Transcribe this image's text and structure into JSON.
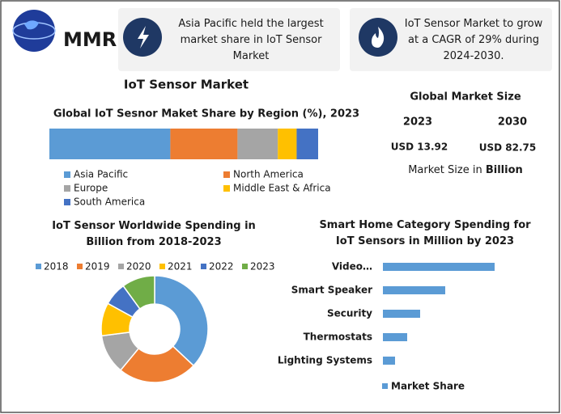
{
  "logo": {
    "text": "MMR"
  },
  "header": {
    "boxes": [
      "Asia Pacific held the largest market share in IoT Sensor Market",
      "IoT Sensor Market to grow at a CAGR of 29% during 2024-2030."
    ]
  },
  "section_title": "IoT Sensor Market",
  "market_size": {
    "title": "Global Market Size",
    "years": [
      "2023",
      "2030"
    ],
    "values": [
      "USD 13.92",
      "USD 82.75"
    ],
    "note": "Market Size in",
    "unit": "Billion"
  },
  "chart_data": [
    {
      "type": "stacked_bar",
      "title": "Global IoT Sesnor Maket Share by Region (%), 2023",
      "series": [
        {
          "name": "Asia Pacific",
          "color": "#5b9bd5",
          "values": [
            45
          ]
        },
        {
          "name": "North America",
          "color": "#ed7d31",
          "values": [
            25
          ]
        },
        {
          "name": "Europe",
          "color": "#a5a5a5",
          "values": [
            15
          ]
        },
        {
          "name": "Middle East & Africa",
          "color": "#ffc000",
          "values": [
            7
          ]
        },
        {
          "name": "South America",
          "color": "#4472c4",
          "values": [
            8
          ]
        }
      ]
    },
    {
      "type": "donut",
      "title": "IoT Sensor Worldwide Spending in Billion from 2018-2023",
      "categories": [
        "2018",
        "2019",
        "2020",
        "2021",
        "2022",
        "2023"
      ],
      "values": [
        37,
        24,
        12,
        10,
        7,
        10
      ],
      "colors": [
        "#5b9bd5",
        "#ed7d31",
        "#a5a5a5",
        "#ffc000",
        "#4472c4",
        "#70ad47"
      ]
    },
    {
      "type": "hbar",
      "title": "Smart Home Category Spending for IoT Sensors in Million by 2023",
      "categories": [
        "Video…",
        "Smart Speaker",
        "Security",
        "Thermostats",
        "Lighting Systems"
      ],
      "series": [
        {
          "name": "Market Share",
          "color": "#5b9bd5",
          "values": [
            138,
            77,
            46,
            30,
            15
          ]
        }
      ]
    }
  ]
}
